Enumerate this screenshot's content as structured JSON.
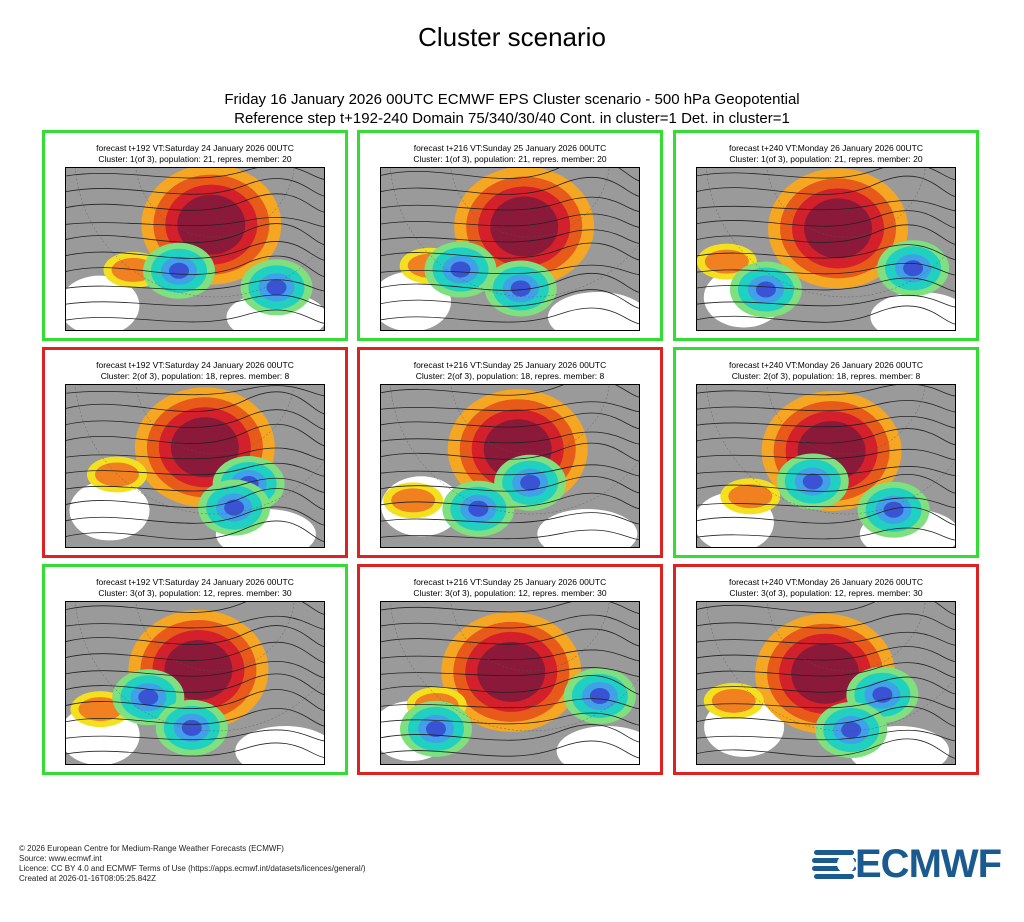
{
  "title": "Cluster scenario",
  "subtitle": {
    "line1": "Friday 16 January 2026 00UTC ECMWF EPS Cluster scenario - 500 hPa Geopotential",
    "line2": "Reference step t+192-240 Domain 75/340/30/40 Cont. in cluster=1 Det. in cluster=1"
  },
  "colors": {
    "green_border": "#33dd33",
    "red_border": "#dd2222",
    "anomaly_grey": "#9a9a9a",
    "anomaly_red": "#8b1a3a",
    "anomaly_blue": "#3a52d4"
  },
  "panels": [
    {
      "line1": "forecast t+192 VT:Saturday 24 January 2026 00UTC",
      "line2": "Cluster: 1(of 3), population: 21, repres. member: 20",
      "border": "green"
    },
    {
      "line1": "forecast t+216 VT:Sunday 25 January 2026 00UTC",
      "line2": "Cluster: 1(of 3), population: 21, repres. member: 20",
      "border": "green"
    },
    {
      "line1": "forecast t+240 VT:Monday 26 January 2026 00UTC",
      "line2": "Cluster: 1(of 3), population: 21, repres. member: 20",
      "border": "green"
    },
    {
      "line1": "forecast t+192 VT:Saturday 24 January 2026 00UTC",
      "line2": "Cluster: 2(of 3), population: 18, repres. member: 8",
      "border": "red"
    },
    {
      "line1": "forecast t+216 VT:Sunday 25 January 2026 00UTC",
      "line2": "Cluster: 2(of 3), population: 18, repres. member: 8",
      "border": "red"
    },
    {
      "line1": "forecast t+240 VT:Monday 26 January 2026 00UTC",
      "line2": "Cluster: 2(of 3), population: 18, repres. member: 8",
      "border": "green"
    },
    {
      "line1": "forecast t+192 VT:Saturday 24 January 2026 00UTC",
      "line2": "Cluster: 3(of 3), population: 12, repres. member: 30",
      "border": "green"
    },
    {
      "line1": "forecast t+216 VT:Sunday 25 January 2026 00UTC",
      "line2": "Cluster: 3(of 3), population: 12, repres. member: 30",
      "border": "red"
    },
    {
      "line1": "forecast t+240 VT:Monday 26 January 2026 00UTC",
      "line2": "Cluster: 3(of 3), population: 12, repres. member: 30",
      "border": "red"
    }
  ],
  "footer": {
    "line1": "© 2026 European Centre for Medium-Range Weather Forecasts (ECMWF)",
    "line2": "Source: www.ecmwf.int",
    "line3": "Licence: CC BY 4.0 and ECMWF Terms of Use (https://apps.ecmwf.int/datasets/licences/general/)",
    "line4": "Created at 2026-01-16T08:05:25.842Z"
  },
  "logo": {
    "text": "ECMWF",
    "icon": "ecmwf-logo-icon"
  }
}
